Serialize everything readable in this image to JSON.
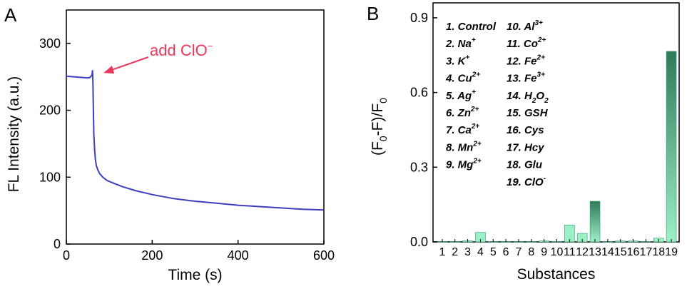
{
  "panels": {
    "a": "A",
    "b": "B"
  },
  "chart_data": [
    {
      "type": "line",
      "xlabel": "Time (s)",
      "ylabel": "FL Intensity (a.u.)",
      "xlim": [
        0,
        600
      ],
      "ylim": [
        0,
        350
      ],
      "xticks": [
        0,
        200,
        400,
        600
      ],
      "yticks": [
        0,
        100,
        200,
        300
      ],
      "grid": false,
      "color": "#3b3fbf",
      "annotation": {
        "text": "add ClO",
        "superscript": "−",
        "color": "#e8375a",
        "points_to": [
          60,
          257
        ]
      },
      "x": [
        0,
        10,
        20,
        30,
        40,
        50,
        55,
        59,
        60,
        61,
        62,
        63,
        64,
        66,
        68,
        70,
        74,
        78,
        85,
        95,
        110,
        130,
        160,
        200,
        250,
        300,
        350,
        400,
        450,
        500,
        550,
        600
      ],
      "y": [
        251,
        250.5,
        250,
        249.5,
        249,
        248.5,
        249,
        252,
        254,
        260,
        240,
        200,
        165,
        140,
        125,
        117,
        110,
        105,
        100,
        95,
        91,
        86,
        80,
        74,
        68,
        64,
        61,
        58,
        56,
        54,
        52,
        51
      ]
    },
    {
      "type": "bar",
      "xlabel": "Substances",
      "ylabel": "(F",
      "ylabel_parts": [
        "(F",
        "0",
        "-F)/F",
        "0"
      ],
      "ylim": [
        0,
        0.96
      ],
      "yticks": [
        "0.0",
        "0.3",
        "0.6",
        "0.9"
      ],
      "grid": false,
      "colors": {
        "light": "#9cf0c6",
        "dark": "#2f7a5a",
        "edge": "#2b9a6a"
      },
      "categories": [
        "1",
        "2",
        "3",
        "4",
        "5",
        "6",
        "7",
        "8",
        "9",
        "10",
        "11",
        "12",
        "13",
        "14",
        "15",
        "16",
        "17",
        "18",
        "19"
      ],
      "values": [
        0.001,
        0.001,
        0.005,
        0.038,
        0.001,
        0.001,
        0.001,
        0.001,
        0.004,
        0.002,
        0.068,
        0.034,
        0.163,
        0.001,
        0.004,
        0.004,
        0.002,
        0.015,
        0.765
      ],
      "legend": [
        {
          "num": "1.",
          "name": "Control"
        },
        {
          "num": "2.",
          "name": "Na",
          "sup": "+"
        },
        {
          "num": "3.",
          "name": "K",
          "sup": "+"
        },
        {
          "num": "4.",
          "name": "Cu",
          "sup": "2+"
        },
        {
          "num": "5.",
          "name": "Ag",
          "sup": "+"
        },
        {
          "num": "6.",
          "name": "Zn",
          "sup": "2+"
        },
        {
          "num": "7.",
          "name": "Ca",
          "sup": "2+"
        },
        {
          "num": "8.",
          "name": "Mn",
          "sup": "2+"
        },
        {
          "num": "9.",
          "name": "Mg",
          "sup": "2+"
        },
        {
          "num": "10.",
          "name": "Al",
          "sup": "3+"
        },
        {
          "num": "11.",
          "name": "Co",
          "sup": "2+"
        },
        {
          "num": "12.",
          "name": "Fe",
          "sup": "2+"
        },
        {
          "num": "13.",
          "name": "Fe",
          "sup": "3+"
        },
        {
          "num": "14.",
          "name": "H",
          "sub": "2",
          "name2": "O",
          "sub2": "2"
        },
        {
          "num": "15.",
          "name": "GSH"
        },
        {
          "num": "16.",
          "name": "Cys"
        },
        {
          "num": "17.",
          "name": "Hcy"
        },
        {
          "num": "18.",
          "name": "Glu"
        },
        {
          "num": "19.",
          "name": "ClO",
          "sup": "-"
        }
      ]
    }
  ]
}
